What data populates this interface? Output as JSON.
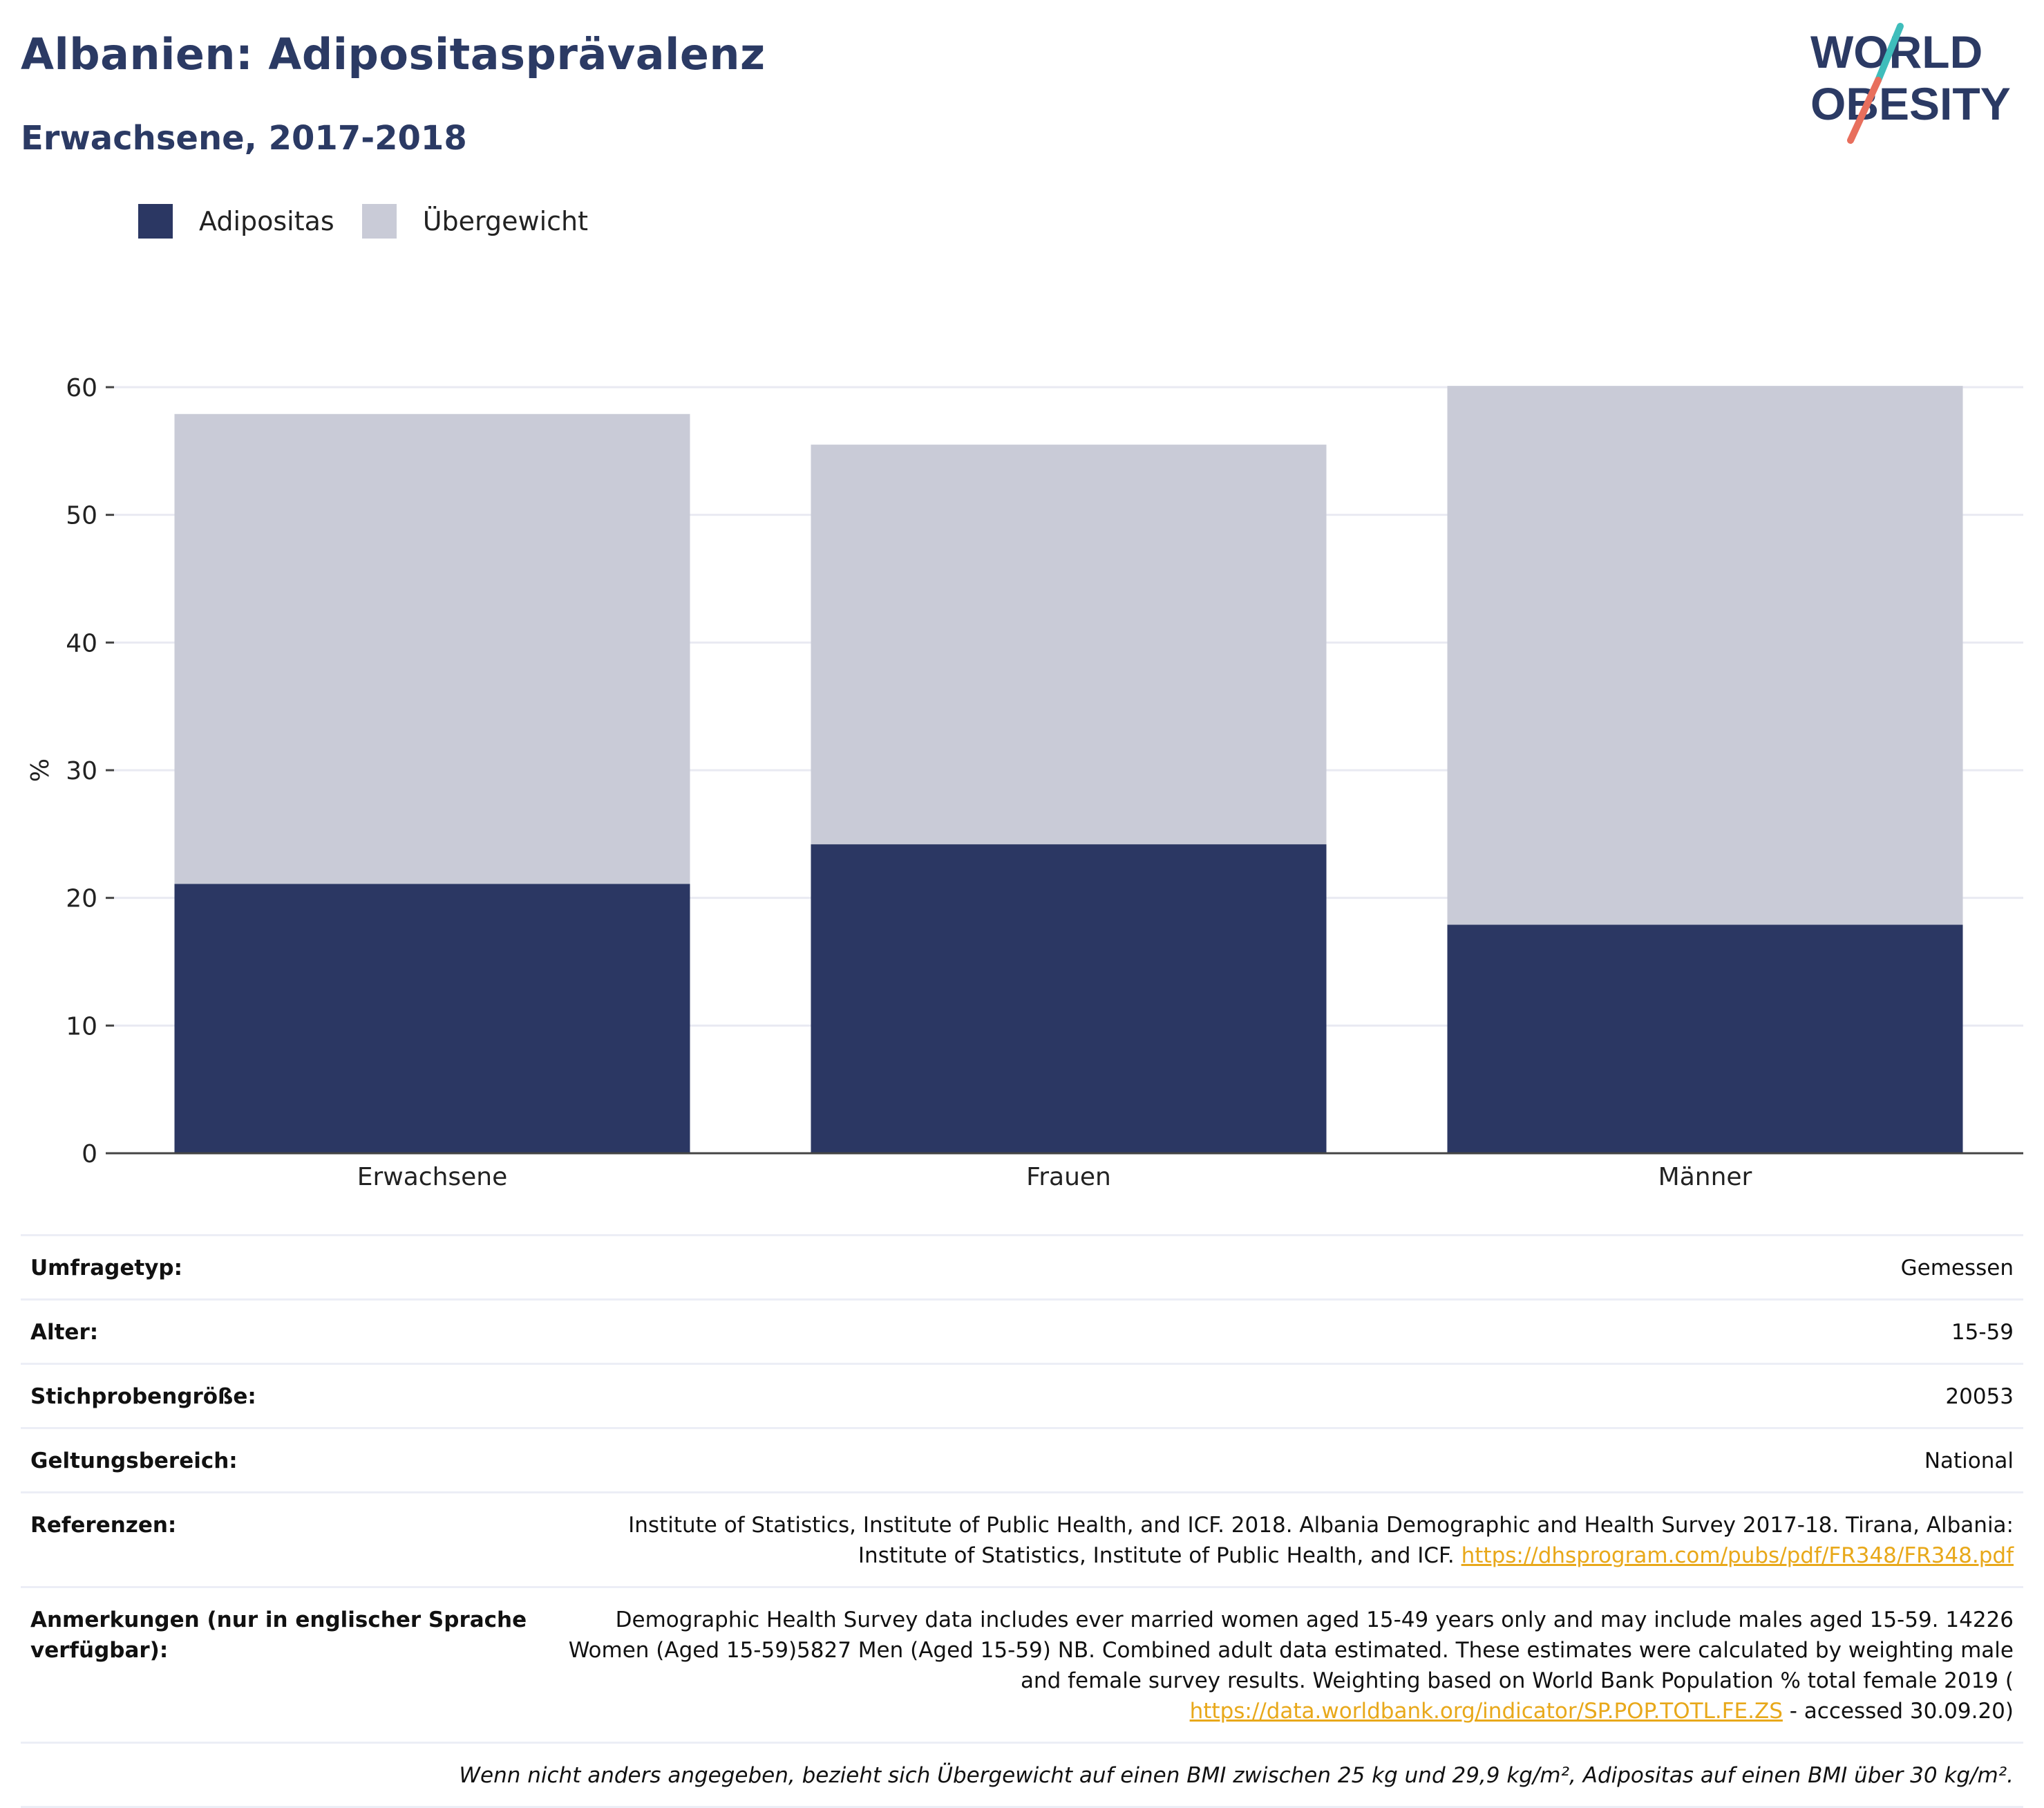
{
  "header": {
    "title": "Albanien: Adipositasprävalenz",
    "subtitle": "Erwachsene, 2017-2018",
    "logo_line1": "WORLD",
    "logo_line2": "OBESITY"
  },
  "colors": {
    "obesity": "#2b3763",
    "overweight": "#c9cbd7",
    "title": "#2b3a64",
    "link": "#e8a81a",
    "logo_teal": "#3fbdbb",
    "logo_coral": "#e86f5d"
  },
  "legend": [
    {
      "label": "Adipositas",
      "color": "#2b3763"
    },
    {
      "label": "Übergewicht",
      "color": "#c9cbd7"
    }
  ],
  "chart_data": {
    "type": "bar",
    "stacked": true,
    "categories": [
      "Erwachsene",
      "Frauen",
      "Männer"
    ],
    "series": [
      {
        "name": "Adipositas",
        "values": [
          21.1,
          24.2,
          17.9
        ]
      },
      {
        "name": "Übergewicht",
        "values": [
          36.8,
          31.3,
          42.2
        ]
      }
    ],
    "ylabel": "%",
    "ylim": [
      0,
      60
    ],
    "yticks": [
      "0",
      "10",
      "20",
      "30",
      "40",
      "50",
      "60"
    ],
    "grid": true,
    "legend_position": "top-left"
  },
  "meta": {
    "rows": [
      {
        "key": "Umfragetyp:",
        "value": "Gemessen"
      },
      {
        "key": "Alter:",
        "value": "15-59"
      },
      {
        "key": "Stichprobengröße:",
        "value": "20053"
      },
      {
        "key": "Geltungsbereich:",
        "value": "National"
      }
    ],
    "references": {
      "key": "Referenzen:",
      "line1": "Institute of Statistics, Institute of Public Health, and ICF. 2018. Albania Demographic and Health Survey 2017-18. Tirana, Albania:",
      "line2": "Institute of Statistics, Institute of Public Health, and ICF.",
      "link": "https://dhsprogram.com/pubs/pdf/FR348/FR348.pdf"
    },
    "notes": {
      "key": "Anmerkungen (nur in englischer Sprache verfügbar):",
      "line1": "Demographic Health Survey data includes ever married women aged 15-49 years only and may include males aged 15-59. 14226",
      "line2": "Women (Aged 15-59)5827 Men (Aged 15-59) NB. Combined adult data estimated. These estimates were calculated by weighting male",
      "line3": "and female survey results. Weighting based on World Bank Population % total female 2019 (",
      "link": "https://data.worldbank.org/indicator/SP.POP.TOTL.FE.ZS",
      "suffix": "- accessed 30.09.20)"
    },
    "footnote": "Wenn nicht anders angegeben, bezieht sich Übergewicht auf einen BMI zwischen 25 kg und 29,9 kg/m², Adipositas auf einen BMI über 30 kg/m²."
  }
}
